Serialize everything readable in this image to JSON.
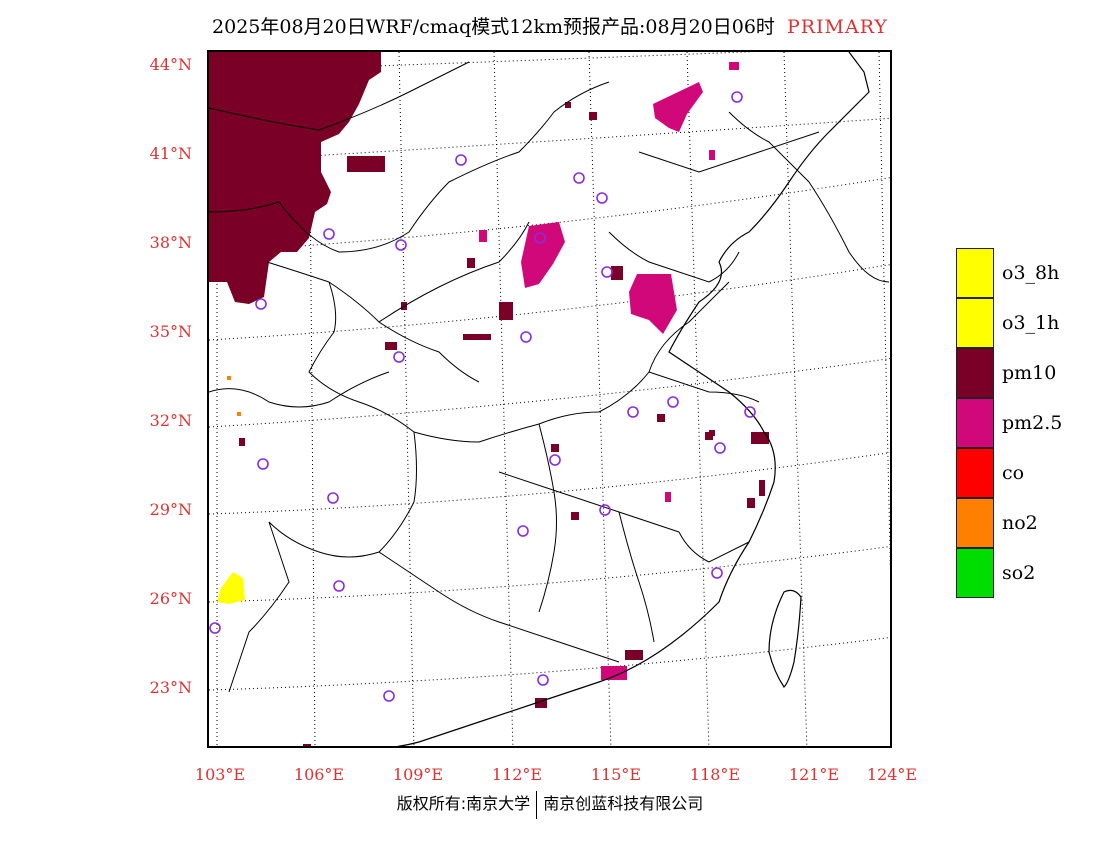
{
  "header": {
    "title": "2025年08月20日WRF/cmaq模式12km预报产品:08月20日06时",
    "tag": "PRIMARY"
  },
  "axes": {
    "lat_labels": [
      "44°N",
      "41°N",
      "38°N",
      "35°N",
      "32°N",
      "29°N",
      "26°N",
      "23°N"
    ],
    "lon_labels": [
      "103°E",
      "106°E",
      "109°E",
      "112°E",
      "115°E",
      "118°E",
      "121°E",
      "124°E"
    ]
  },
  "legend": {
    "items": [
      {
        "label": "o3_8h",
        "color": "#ffff00"
      },
      {
        "label": "o3_1h",
        "color": "#ffff00"
      },
      {
        "label": "pm10",
        "color": "#7a0028"
      },
      {
        "label": "pm2.5",
        "color": "#d0087a"
      },
      {
        "label": "co",
        "color": "#ff0000"
      },
      {
        "label": "no2",
        "color": "#ff8000"
      },
      {
        "label": "so2",
        "color": "#00dd00"
      }
    ]
  },
  "footer": {
    "copyright_left": "版权所有:南京大学",
    "copyright_right": "南京创蓝科技有限公司"
  },
  "colors": {
    "label_red": "#e03030",
    "station_marker": "#8a2be2"
  }
}
